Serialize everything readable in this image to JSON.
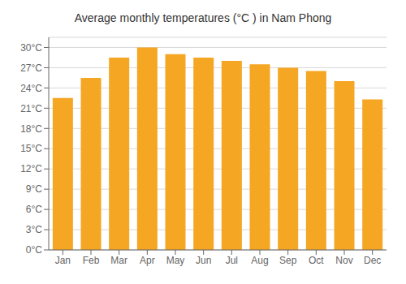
{
  "chart_data": {
    "type": "bar",
    "title": "Average monthly temperatures (°C ) in Nam Phong",
    "categories": [
      "Jan",
      "Feb",
      "Mar",
      "Apr",
      "May",
      "Jun",
      "Jul",
      "Aug",
      "Sep",
      "Oct",
      "Nov",
      "Dec"
    ],
    "values": [
      22.5,
      25.5,
      28.5,
      30.0,
      29.0,
      28.5,
      28.0,
      27.5,
      27.0,
      26.5,
      25.0,
      22.3
    ],
    "color": "#F5A623",
    "ylim": [
      0,
      31.5
    ],
    "yticks": [
      {
        "value": 0,
        "label": "0°C"
      },
      {
        "value": 3,
        "label": "3°C"
      },
      {
        "value": 6,
        "label": "6°C"
      },
      {
        "value": 9,
        "label": "9°C"
      },
      {
        "value": 12,
        "label": "12°C"
      },
      {
        "value": 15,
        "label": "15°C"
      },
      {
        "value": 18,
        "label": "18°C"
      },
      {
        "value": 21,
        "label": "21°C"
      },
      {
        "value": 24,
        "label": "24°C"
      },
      {
        "value": 27,
        "label": "27°C"
      },
      {
        "value": 30,
        "label": "30°C"
      }
    ],
    "grid": true
  }
}
